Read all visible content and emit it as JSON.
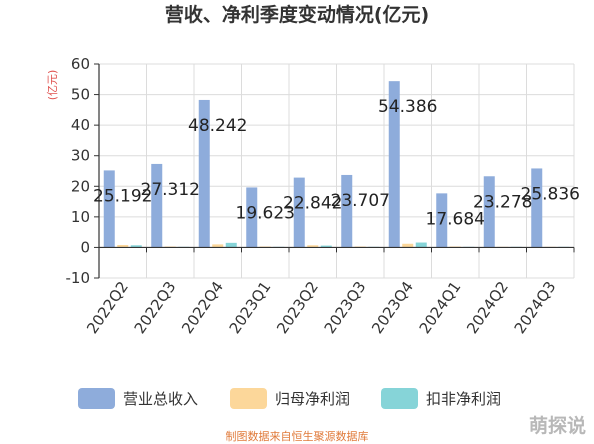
{
  "chart_data": {
    "type": "bar",
    "title": "营收、净利季度变动情况(亿元)",
    "ylabel": "(亿元)",
    "xlabel": "",
    "ylim": [
      -10,
      60
    ],
    "yticks": [
      -10,
      0,
      10,
      20,
      30,
      40,
      50,
      60
    ],
    "grid": true,
    "legend_position": "bottom",
    "categories": [
      "2022Q2",
      "2022Q3",
      "2022Q4",
      "2023Q1",
      "2023Q2",
      "2023Q3",
      "2023Q4",
      "2024Q1",
      "2024Q2",
      "2024Q3"
    ],
    "series": [
      {
        "name": "营业总收入",
        "color": "#8eacdb",
        "values": [
          25.192,
          27.312,
          48.242,
          19.623,
          22.842,
          23.707,
          54.386,
          17.684,
          23.278,
          25.836
        ]
      },
      {
        "name": "归母净利润",
        "color": "#fcd79a",
        "values": [
          0.8,
          0.3,
          1.0,
          0.3,
          0.7,
          0.3,
          1.2,
          0.3,
          0.2,
          0.2
        ]
      },
      {
        "name": "扣非净利润",
        "color": "#86d4d8",
        "values": [
          0.7,
          0.2,
          1.5,
          0.2,
          0.6,
          0.2,
          1.6,
          0.2,
          0.2,
          0.2
        ]
      }
    ],
    "data_labels": [
      "25.192",
      "27.312",
      "48.242",
      "19.623",
      "22.842",
      "23.707",
      "54.386",
      "17.684",
      "23.278",
      "25.836"
    ]
  },
  "footer": {
    "source": "制图数据来自恒生聚源数据库",
    "logo": "萌探说"
  }
}
